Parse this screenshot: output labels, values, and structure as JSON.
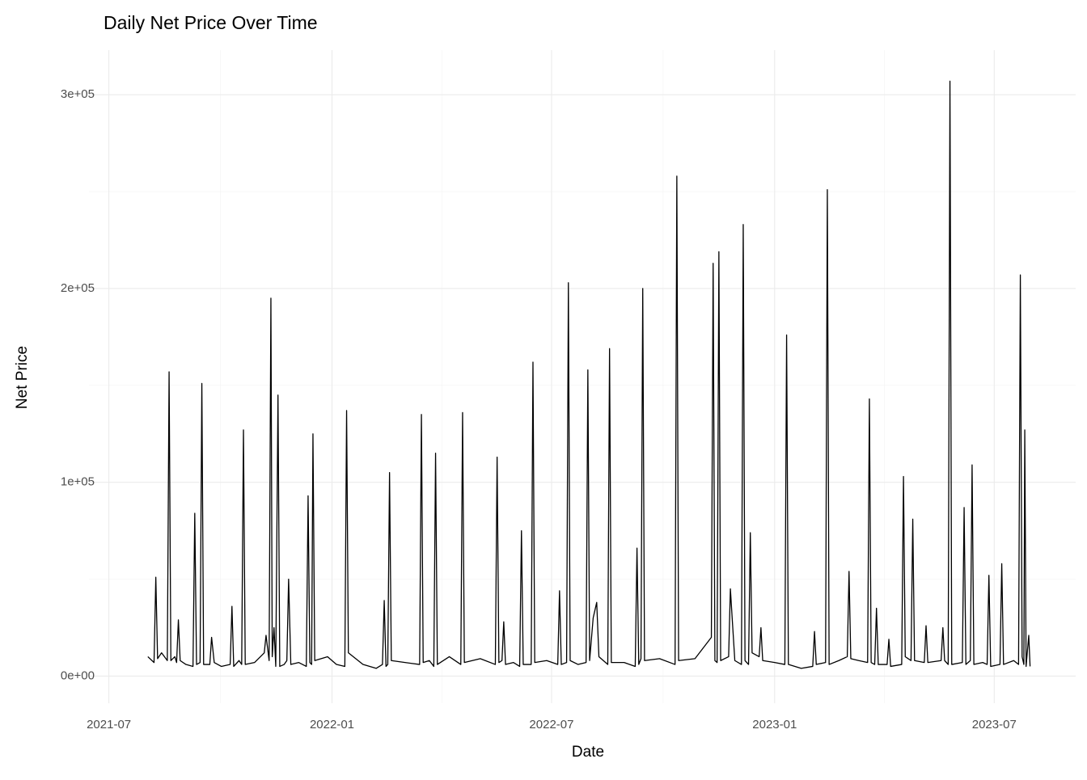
{
  "chart_data": {
    "type": "line",
    "title": "Daily Net Price Over Time",
    "x_label": "Date",
    "y_label": "Net Price",
    "color": "#000000",
    "grid": true,
    "x": [
      2021.584,
      2021.598,
      2021.602,
      2021.606,
      2021.615,
      2021.628,
      2021.632,
      2021.636,
      2021.645,
      2021.649,
      2021.653,
      2021.657,
      2021.67,
      2021.686,
      2021.69,
      2021.694,
      2021.702,
      2021.706,
      2021.71,
      2021.724,
      2021.728,
      2021.734,
      2021.75,
      2021.77,
      2021.774,
      2021.778,
      2021.79,
      2021.796,
      2021.8,
      2021.804,
      2021.825,
      2021.847,
      2021.851,
      2021.858,
      2021.862,
      2021.865,
      2021.869,
      2021.873,
      2021.878,
      2021.882,
      2021.892,
      2021.898,
      2021.902,
      2021.907,
      2021.925,
      2021.942,
      2021.946,
      2021.95,
      2021.954,
      2021.957,
      2021.961,
      2021.99,
      2022.01,
      2022.029,
      2022.033,
      2022.037,
      2022.07,
      2022.1,
      2022.114,
      2022.118,
      2022.122,
      2022.126,
      2022.13,
      2022.134,
      2022.165,
      2022.198,
      2022.202,
      2022.206,
      2022.22,
      2022.23,
      2022.234,
      2022.238,
      2022.265,
      2022.291,
      2022.295,
      2022.299,
      2022.335,
      2022.369,
      2022.373,
      2022.377,
      2022.384,
      2022.388,
      2022.392,
      2022.41,
      2022.424,
      2022.428,
      2022.432,
      2022.45,
      2022.454,
      2022.458,
      2022.485,
      2022.51,
      2022.514,
      2022.518,
      2022.53,
      2022.534,
      2022.538,
      2022.556,
      2022.574,
      2022.578,
      2022.582,
      2022.59,
      2022.598,
      2022.603,
      2022.623,
      2022.627,
      2022.631,
      2022.66,
      2022.685,
      2022.689,
      2022.693,
      2022.698,
      2022.702,
      2022.706,
      2022.74,
      2022.775,
      2022.779,
      2022.783,
      2022.82,
      2022.857,
      2022.861,
      2022.865,
      2022.87,
      2022.874,
      2022.878,
      2022.896,
      2022.9,
      2022.904,
      2022.91,
      2022.925,
      2022.929,
      2022.933,
      2022.941,
      2022.945,
      2022.949,
      2022.965,
      2022.969,
      2022.973,
      2023.0,
      2023.023,
      2023.027,
      2023.031,
      2023.06,
      2023.086,
      2023.09,
      2023.094,
      2023.115,
      2023.119,
      2023.123,
      2023.145,
      2023.164,
      2023.168,
      2023.172,
      2023.19,
      2023.21,
      2023.214,
      2023.218,
      2023.226,
      2023.23,
      2023.234,
      2023.254,
      2023.258,
      2023.262,
      2023.287,
      2023.291,
      2023.295,
      2023.308,
      2023.312,
      2023.316,
      2023.338,
      2023.342,
      2023.346,
      2023.376,
      2023.38,
      2023.384,
      2023.392,
      2023.396,
      2023.4,
      2023.424,
      2023.428,
      2023.432,
      2023.442,
      2023.446,
      2023.45,
      2023.47,
      2023.48,
      2023.484,
      2023.488,
      2023.509,
      2023.513,
      2023.517,
      2023.54,
      2023.551,
      2023.555,
      2023.559,
      2023.563,
      2023.565,
      2023.568,
      2023.574,
      2023.577
    ],
    "values": [
      10000,
      7000,
      51000,
      9000,
      12000,
      8000,
      157000,
      8000,
      10000,
      7000,
      29000,
      8000,
      6000,
      5000,
      84000,
      6000,
      7000,
      151000,
      6000,
      6000,
      20000,
      7000,
      5000,
      6000,
      36000,
      5000,
      8000,
      6000,
      127000,
      6000,
      7000,
      12000,
      21000,
      8000,
      195000,
      10000,
      25000,
      5000,
      145000,
      5000,
      6000,
      8000,
      50000,
      6000,
      7000,
      5000,
      93000,
      7000,
      6000,
      125000,
      8000,
      10000,
      6000,
      5000,
      137000,
      12000,
      6000,
      4000,
      6000,
      39000,
      5000,
      6000,
      105000,
      8000,
      7000,
      6000,
      135000,
      7000,
      8000,
      5000,
      115000,
      6000,
      10000,
      6000,
      136000,
      7000,
      9000,
      6000,
      113000,
      7000,
      8000,
      28000,
      6000,
      7000,
      5000,
      75000,
      6000,
      6000,
      162000,
      7000,
      8000,
      6000,
      44000,
      6000,
      7000,
      203000,
      8000,
      6000,
      7000,
      158000,
      8000,
      30000,
      38000,
      10000,
      6000,
      169000,
      7000,
      7000,
      5000,
      66000,
      6000,
      9000,
      200000,
      8000,
      9000,
      6000,
      258000,
      8000,
      9000,
      20000,
      213000,
      8000,
      7000,
      219000,
      8000,
      10000,
      45000,
      30000,
      8000,
      6000,
      233000,
      8000,
      6000,
      74000,
      12000,
      10000,
      25000,
      8000,
      7000,
      6000,
      176000,
      6000,
      4000,
      5000,
      23000,
      6000,
      7000,
      251000,
      6000,
      8000,
      10000,
      54000,
      9000,
      8000,
      7000,
      143000,
      7000,
      6000,
      35000,
      6000,
      6000,
      19000,
      5000,
      6000,
      103000,
      10000,
      8000,
      81000,
      8000,
      7000,
      26000,
      7000,
      8000,
      25000,
      8000,
      6000,
      307000,
      6000,
      7000,
      87000,
      6000,
      8000,
      109000,
      6000,
      7000,
      6000,
      52000,
      5000,
      6000,
      58000,
      6000,
      8000,
      6000,
      207000,
      10000,
      6000,
      127000,
      5000,
      21000,
      5000
    ],
    "xlim": [
      2021.451,
      2023.68
    ],
    "xticks": [
      {
        "value": 2021.496,
        "label": "2021-07"
      },
      {
        "value": 2022.0,
        "label": "2022-01"
      },
      {
        "value": 2022.496,
        "label": "2022-07"
      },
      {
        "value": 2023.0,
        "label": "2023-01"
      },
      {
        "value": 2023.496,
        "label": "2023-07"
      }
    ],
    "xminor": [
      2021.748,
      2022.248,
      2022.748,
      2023.248
    ],
    "ylim": [
      -14000,
      323000
    ],
    "yticks": [
      {
        "value": 0,
        "label": "0e+00"
      },
      {
        "value": 100000,
        "label": "1e+05"
      },
      {
        "value": 200000,
        "label": "2e+05"
      },
      {
        "value": 300000,
        "label": "3e+05"
      }
    ],
    "yminor": [
      50000,
      150000,
      250000
    ]
  }
}
